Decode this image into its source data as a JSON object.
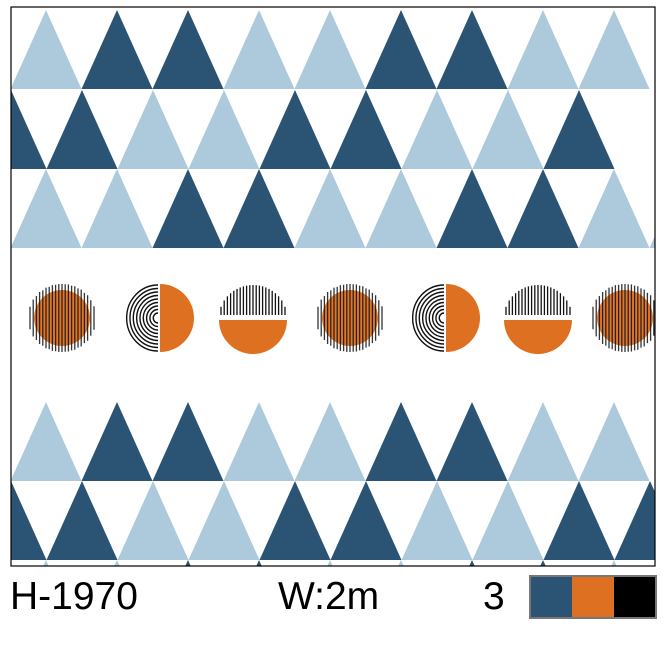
{
  "product": {
    "code": "H-1970",
    "width": "W:2m",
    "color_count": "3"
  },
  "palette": {
    "dark_blue": "#2b5373",
    "light_blue": "#adc9dc",
    "orange": "#dd7021",
    "black": "#000000",
    "background": "#ffffff"
  },
  "color_chips": [
    "#2b5373",
    "#dd7021",
    "#000000"
  ],
  "pattern": {
    "triangle_rows_top": [
      [
        "light",
        "dark",
        "dark",
        "light",
        "light",
        "dark",
        "dark",
        "light",
        "light"
      ],
      [
        "dark",
        "dark",
        "dark",
        "light",
        "light",
        "dark",
        "dark",
        "light",
        "light",
        "dark"
      ],
      [
        "light",
        "light",
        "dark",
        "dark",
        "light",
        "light",
        "dark",
        "dark",
        "light",
        "light"
      ]
    ],
    "triangle_rows_bottom": [
      [
        "light",
        "dark",
        "dark",
        "light",
        "light",
        "dark",
        "dark",
        "light",
        "light"
      ],
      [
        "dark",
        "dark",
        "light",
        "light",
        "dark",
        "dark",
        "light",
        "light",
        "dark",
        "dark"
      ]
    ],
    "motifs": [
      "striped-circle",
      "fingerprint-half-circle",
      "striped-half-circle",
      "striped-circle",
      "fingerprint-half-circle",
      "striped-half-circle",
      "striped-circle"
    ]
  }
}
